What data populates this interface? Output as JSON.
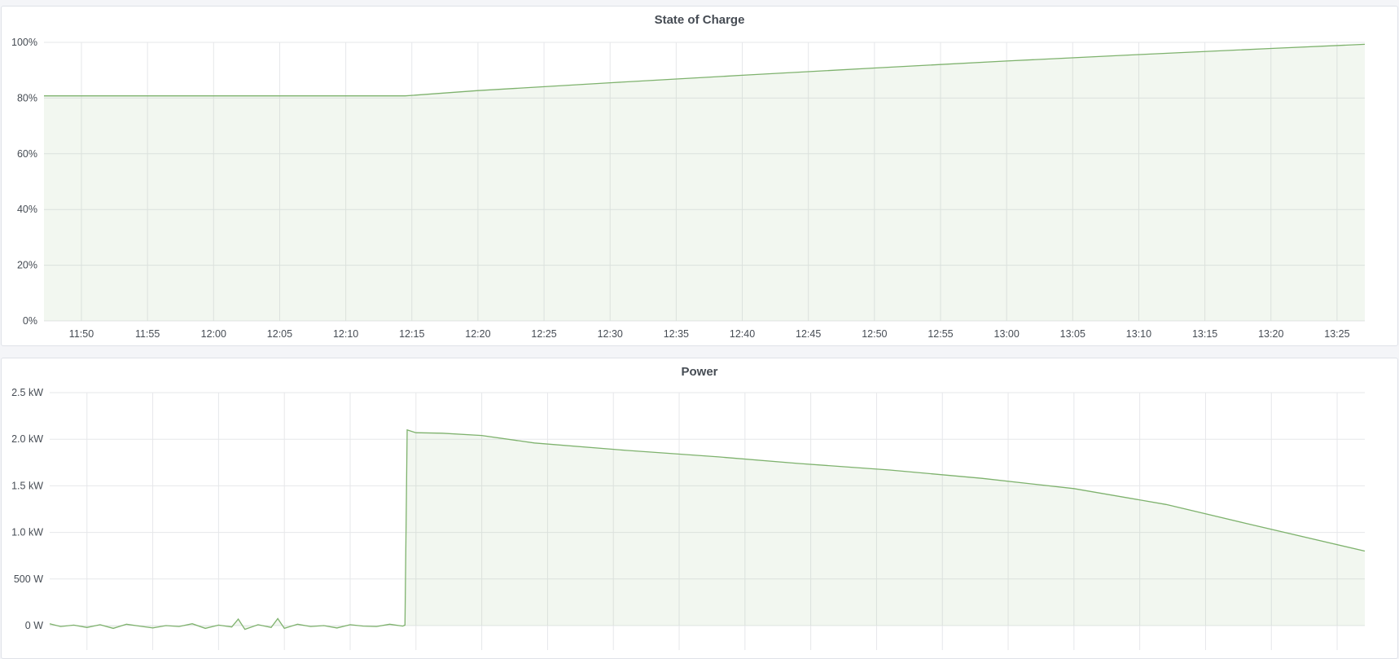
{
  "chart_data": [
    {
      "type": "area",
      "title": "State of Charge",
      "xlim": [
        "11:47:10",
        "13:27:06"
      ],
      "ylim": [
        0,
        100
      ],
      "y_unit": "%",
      "x_ticks": [
        "11:50",
        "11:55",
        "12:00",
        "12:05",
        "12:10",
        "12:15",
        "12:20",
        "12:25",
        "12:30",
        "12:35",
        "12:40",
        "12:45",
        "12:50",
        "12:55",
        "13:00",
        "13:05",
        "13:10",
        "13:15",
        "13:20",
        "13:25"
      ],
      "y_ticks": [
        "0%",
        "20%",
        "40%",
        "60%",
        "80%",
        "100%"
      ],
      "y_tick_values": [
        0,
        20,
        40,
        60,
        80,
        100
      ],
      "grid": true,
      "color": "#7eb26d",
      "series": [
        {
          "x": [
            "11:47:10",
            "12:14:30",
            "12:20",
            "12:30",
            "12:40",
            "12:50",
            "13:00",
            "13:10",
            "13:20",
            "13:27:06"
          ],
          "y": [
            80.8,
            80.8,
            82.7,
            85.5,
            88.2,
            90.8,
            93.3,
            95.6,
            97.8,
            99.3
          ]
        }
      ]
    },
    {
      "type": "area",
      "title": "Power",
      "xlim": [
        "11:47:10",
        "13:27:06"
      ],
      "ylim": [
        0,
        2500
      ],
      "y_unit": "W",
      "y_ticks": [
        "0 W",
        "500 W",
        "1.0 kW",
        "1.5 kW",
        "2.0 kW",
        "2.5 kW"
      ],
      "y_tick_values": [
        0,
        500,
        1000,
        1500,
        2000,
        2500
      ],
      "grid": true,
      "color": "#7eb26d",
      "series": [
        {
          "x": [
            "11:47:10",
            "11:48",
            "11:49",
            "11:50",
            "11:51",
            "11:52",
            "11:53",
            "11:54",
            "11:55",
            "11:56",
            "11:57",
            "11:58",
            "11:59",
            "12:00",
            "12:01",
            "12:01:30",
            "12:02",
            "12:03",
            "12:04",
            "12:04:30",
            "12:05",
            "12:06",
            "12:07",
            "12:08",
            "12:09",
            "12:10",
            "12:11",
            "12:12",
            "12:13",
            "12:14",
            "12:14:10",
            "12:14:20",
            "12:15",
            "12:17",
            "12:20",
            "12:24",
            "12:31",
            "12:38",
            "12:44",
            "12:51",
            "12:58",
            "13:05",
            "13:12",
            "13:18",
            "13:27:06"
          ],
          "y": [
            20,
            -10,
            5,
            -20,
            10,
            -30,
            15,
            -5,
            -25,
            0,
            -10,
            20,
            -30,
            5,
            -15,
            70,
            -40,
            10,
            -20,
            75,
            -30,
            15,
            -10,
            0,
            -25,
            10,
            -5,
            -10,
            15,
            -5,
            5,
            2100,
            2070,
            2065,
            2040,
            1960,
            1880,
            1810,
            1740,
            1670,
            1580,
            1470,
            1300,
            1100,
            800
          ]
        }
      ]
    }
  ]
}
